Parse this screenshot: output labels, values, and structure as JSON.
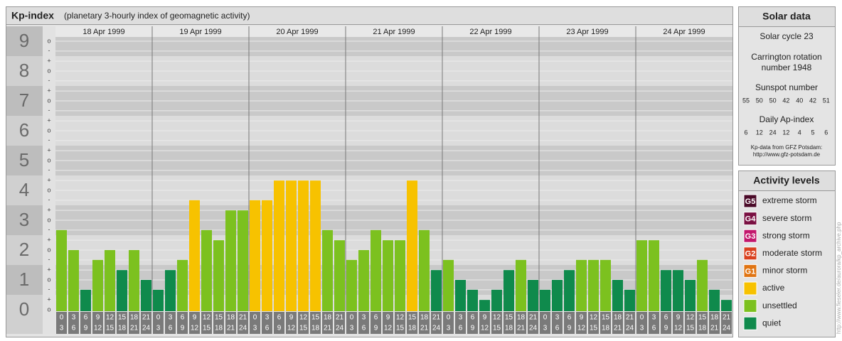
{
  "chart_data": {
    "type": "bar",
    "title": "Kp-index",
    "subtitle": "(planetary 3-hourly index of geomagnetic activity)",
    "ylim": [
      0,
      9.5
    ],
    "yticks": [
      0,
      1,
      2,
      3,
      4,
      5,
      6,
      7,
      8,
      9
    ],
    "minor_ticks": [
      {
        "value": 0,
        "label": "o"
      },
      {
        "value": 0.33,
        "label": "+"
      },
      {
        "value": 0.67,
        "label": "-"
      },
      {
        "value": 1,
        "label": "o"
      },
      {
        "value": 1.33,
        "label": "+"
      },
      {
        "value": 1.67,
        "label": "-"
      },
      {
        "value": 2,
        "label": "o"
      },
      {
        "value": 2.33,
        "label": "+"
      },
      {
        "value": 2.67,
        "label": "-"
      },
      {
        "value": 3,
        "label": "o"
      },
      {
        "value": 3.33,
        "label": "+"
      },
      {
        "value": 3.67,
        "label": "-"
      },
      {
        "value": 4,
        "label": "o"
      },
      {
        "value": 4.33,
        "label": "+"
      },
      {
        "value": 4.67,
        "label": "-"
      },
      {
        "value": 5,
        "label": "o"
      },
      {
        "value": 5.33,
        "label": "+"
      },
      {
        "value": 5.67,
        "label": "-"
      },
      {
        "value": 6,
        "label": "o"
      },
      {
        "value": 6.33,
        "label": "+"
      },
      {
        "value": 6.67,
        "label": "-"
      },
      {
        "value": 7,
        "label": "o"
      },
      {
        "value": 7.33,
        "label": "+"
      },
      {
        "value": 7.67,
        "label": "-"
      },
      {
        "value": 8,
        "label": "o"
      },
      {
        "value": 8.33,
        "label": "+"
      },
      {
        "value": 8.67,
        "label": "-"
      },
      {
        "value": 9,
        "label": "o"
      }
    ],
    "hours": [
      [
        "0",
        "3"
      ],
      [
        "3",
        "6"
      ],
      [
        "6",
        "9"
      ],
      [
        "9",
        "12"
      ],
      [
        "12",
        "15"
      ],
      [
        "15",
        "18"
      ],
      [
        "18",
        "21"
      ],
      [
        "21",
        "24"
      ]
    ],
    "days": [
      {
        "date": "18 Apr 1999",
        "values": [
          2.67,
          2,
          0.67,
          1.67,
          2,
          1.33,
          2,
          1
        ],
        "colors": [
          "#7cc11f",
          "#7cc11f",
          "#0f8a4c",
          "#7cc11f",
          "#7cc11f",
          "#0f8a4c",
          "#7cc11f",
          "#0f8a4c"
        ]
      },
      {
        "date": "19 Apr 1999",
        "values": [
          0.67,
          1.33,
          1.67,
          3.67,
          2.67,
          2.33,
          3.33,
          3.33
        ],
        "colors": [
          "#0f8a4c",
          "#0f8a4c",
          "#7cc11f",
          "#f7c200",
          "#7cc11f",
          "#7cc11f",
          "#7cc11f",
          "#7cc11f"
        ]
      },
      {
        "date": "20 Apr 1999",
        "values": [
          3.67,
          3.67,
          4.33,
          4.33,
          4.33,
          4.33,
          2.67,
          2.33
        ],
        "colors": [
          "#f7c200",
          "#f7c200",
          "#f7c200",
          "#f7c200",
          "#f7c200",
          "#f7c200",
          "#7cc11f",
          "#7cc11f"
        ]
      },
      {
        "date": "21 Apr 1999",
        "values": [
          1.67,
          2,
          2.67,
          2.33,
          2.33,
          4.33,
          2.67,
          1.33
        ],
        "colors": [
          "#7cc11f",
          "#7cc11f",
          "#7cc11f",
          "#7cc11f",
          "#7cc11f",
          "#f7c200",
          "#7cc11f",
          "#0f8a4c"
        ]
      },
      {
        "date": "22 Apr 1999",
        "values": [
          1.67,
          1,
          0.67,
          0.33,
          0.67,
          1.33,
          1.67,
          1
        ],
        "colors": [
          "#7cc11f",
          "#0f8a4c",
          "#0f8a4c",
          "#0f8a4c",
          "#0f8a4c",
          "#0f8a4c",
          "#7cc11f",
          "#0f8a4c"
        ]
      },
      {
        "date": "23 Apr 1999",
        "values": [
          0.67,
          1,
          1.33,
          1.67,
          1.67,
          1.67,
          1,
          0.67
        ],
        "colors": [
          "#0f8a4c",
          "#0f8a4c",
          "#0f8a4c",
          "#7cc11f",
          "#7cc11f",
          "#7cc11f",
          "#0f8a4c",
          "#0f8a4c"
        ]
      },
      {
        "date": "24 Apr 1999",
        "values": [
          2.33,
          2.33,
          1.33,
          1.33,
          1,
          1.67,
          0.67,
          0.33
        ],
        "colors": [
          "#7cc11f",
          "#7cc11f",
          "#0f8a4c",
          "#0f8a4c",
          "#0f8a4c",
          "#7cc11f",
          "#0f8a4c",
          "#0f8a4c"
        ]
      }
    ]
  },
  "solar": {
    "title": "Solar data",
    "cycle": "Solar cycle 23",
    "rotation": [
      "Carrington rotation",
      "number 1948"
    ],
    "sunspot_label": "Sunspot number",
    "sunspots": [
      55,
      50,
      50,
      42,
      40,
      42,
      51
    ],
    "ap_label": "Daily Ap-index",
    "ap": [
      6,
      12,
      24,
      12,
      4,
      5,
      6
    ],
    "source": [
      "Kp-data from GFZ Potsdam:",
      "http://www.gfz-potsdam.de"
    ]
  },
  "activity": {
    "title": "Activity levels",
    "levels": [
      {
        "badge": "G5",
        "label": "extreme storm",
        "color": "#4a0a28"
      },
      {
        "badge": "G4",
        "label": "severe storm",
        "color": "#7a1042"
      },
      {
        "badge": "G3",
        "label": "strong storm",
        "color": "#c2176c"
      },
      {
        "badge": "G2",
        "label": "moderate storm",
        "color": "#d9401e"
      },
      {
        "badge": "G1",
        "label": "minor storm",
        "color": "#e07412"
      },
      {
        "label": "active",
        "color": "#f7c200"
      },
      {
        "label": "unsettled",
        "color": "#7cc11f"
      },
      {
        "label": "quiet",
        "color": "#0f8a4c"
      }
    ]
  },
  "credit": "http://www.fieseler.de/aurora/kp_archive.php"
}
